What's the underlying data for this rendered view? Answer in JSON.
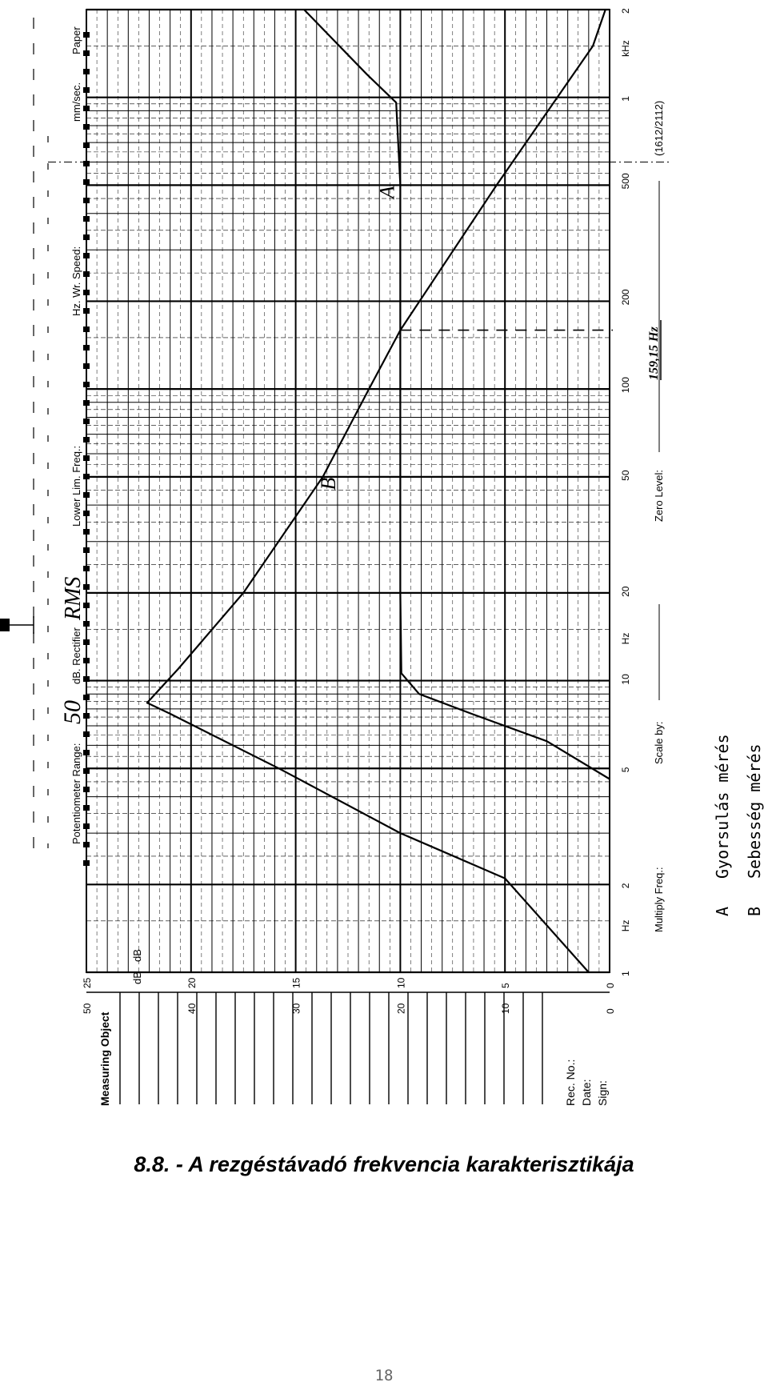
{
  "header": {
    "pot_range_label": "Potentiometer Range:",
    "pot_range_value": "50",
    "rectifier_label": "dB. Rectifier",
    "rectifier_value": "RMS",
    "lower_lim_label": "Lower Lim. Freq.:",
    "speed_label": "Hz. Wr. Speed:",
    "speed_unit": "mm/sec.",
    "paper_label": "Paper"
  },
  "footer": {
    "multiply_label": "Multiply Freq.:",
    "scale_label": "Scale by:",
    "zero_level_label": "Zero Level:",
    "freq_note": "159,15 Hz",
    "paper_code": "(1612/2112)"
  },
  "left_panel": {
    "measuring_label": "Measuring Object",
    "rec_label": "Rec. No.:",
    "date_label": "Date:",
    "sign_label": "Sign:",
    "db_col_header": "dB",
    "db_col_header2": "dB"
  },
  "legend": [
    {
      "key": "A",
      "text": "Gyorsulás mérés"
    },
    {
      "key": "B",
      "text": "Sebesség mérés"
    }
  ],
  "curve_labels": {
    "a": "A",
    "b": "B"
  },
  "caption": "8.8. - A rezgéstávadó frekvencia karakterisztikája",
  "page_number": "18",
  "chart_data": {
    "type": "line",
    "title": "",
    "xlabel": "Hz",
    "ylabel": "dB",
    "x_scale": "log",
    "xlim": [
      1,
      2000
    ],
    "ylim": [
      0,
      25
    ],
    "x_ticks": [
      "1",
      "2",
      "5",
      "10",
      "20",
      "50",
      "100",
      "200",
      "500",
      "1",
      "2"
    ],
    "x_unit_labels": [
      "Hz",
      "Hz",
      "kHz"
    ],
    "y_tick_columns": [
      [
        "0",
        "5",
        "10",
        "15",
        "20",
        "25"
      ],
      [
        "0",
        "10",
        "20",
        "30",
        "40",
        "50"
      ]
    ],
    "grid": true,
    "series": [
      {
        "name": "A",
        "color": "#000000",
        "x": [
          4.6,
          6.2,
          7.7,
          9,
          10.6,
          20,
          100,
          159.15,
          500,
          960,
          1200,
          2000
        ],
        "y": [
          0,
          3,
          6.6,
          9.1,
          9.95,
          10,
          10,
          10,
          10,
          10.2,
          11.6,
          14.6
        ]
      },
      {
        "name": "B",
        "color": "#000000",
        "x": [
          1.0,
          2.1,
          3.0,
          5.0,
          7.7,
          8.4,
          11,
          20,
          50,
          100,
          159.15,
          500,
          1000,
          1500,
          2000
        ],
        "y": [
          1.0,
          5.0,
          10.0,
          15.8,
          21.0,
          22.1,
          20.6,
          17.5,
          13.7,
          11.5,
          10.0,
          5.4,
          2.5,
          0.8,
          0.2
        ]
      }
    ],
    "markers": [
      {
        "x": 159.15,
        "label": "159,15 Hz"
      }
    ]
  }
}
